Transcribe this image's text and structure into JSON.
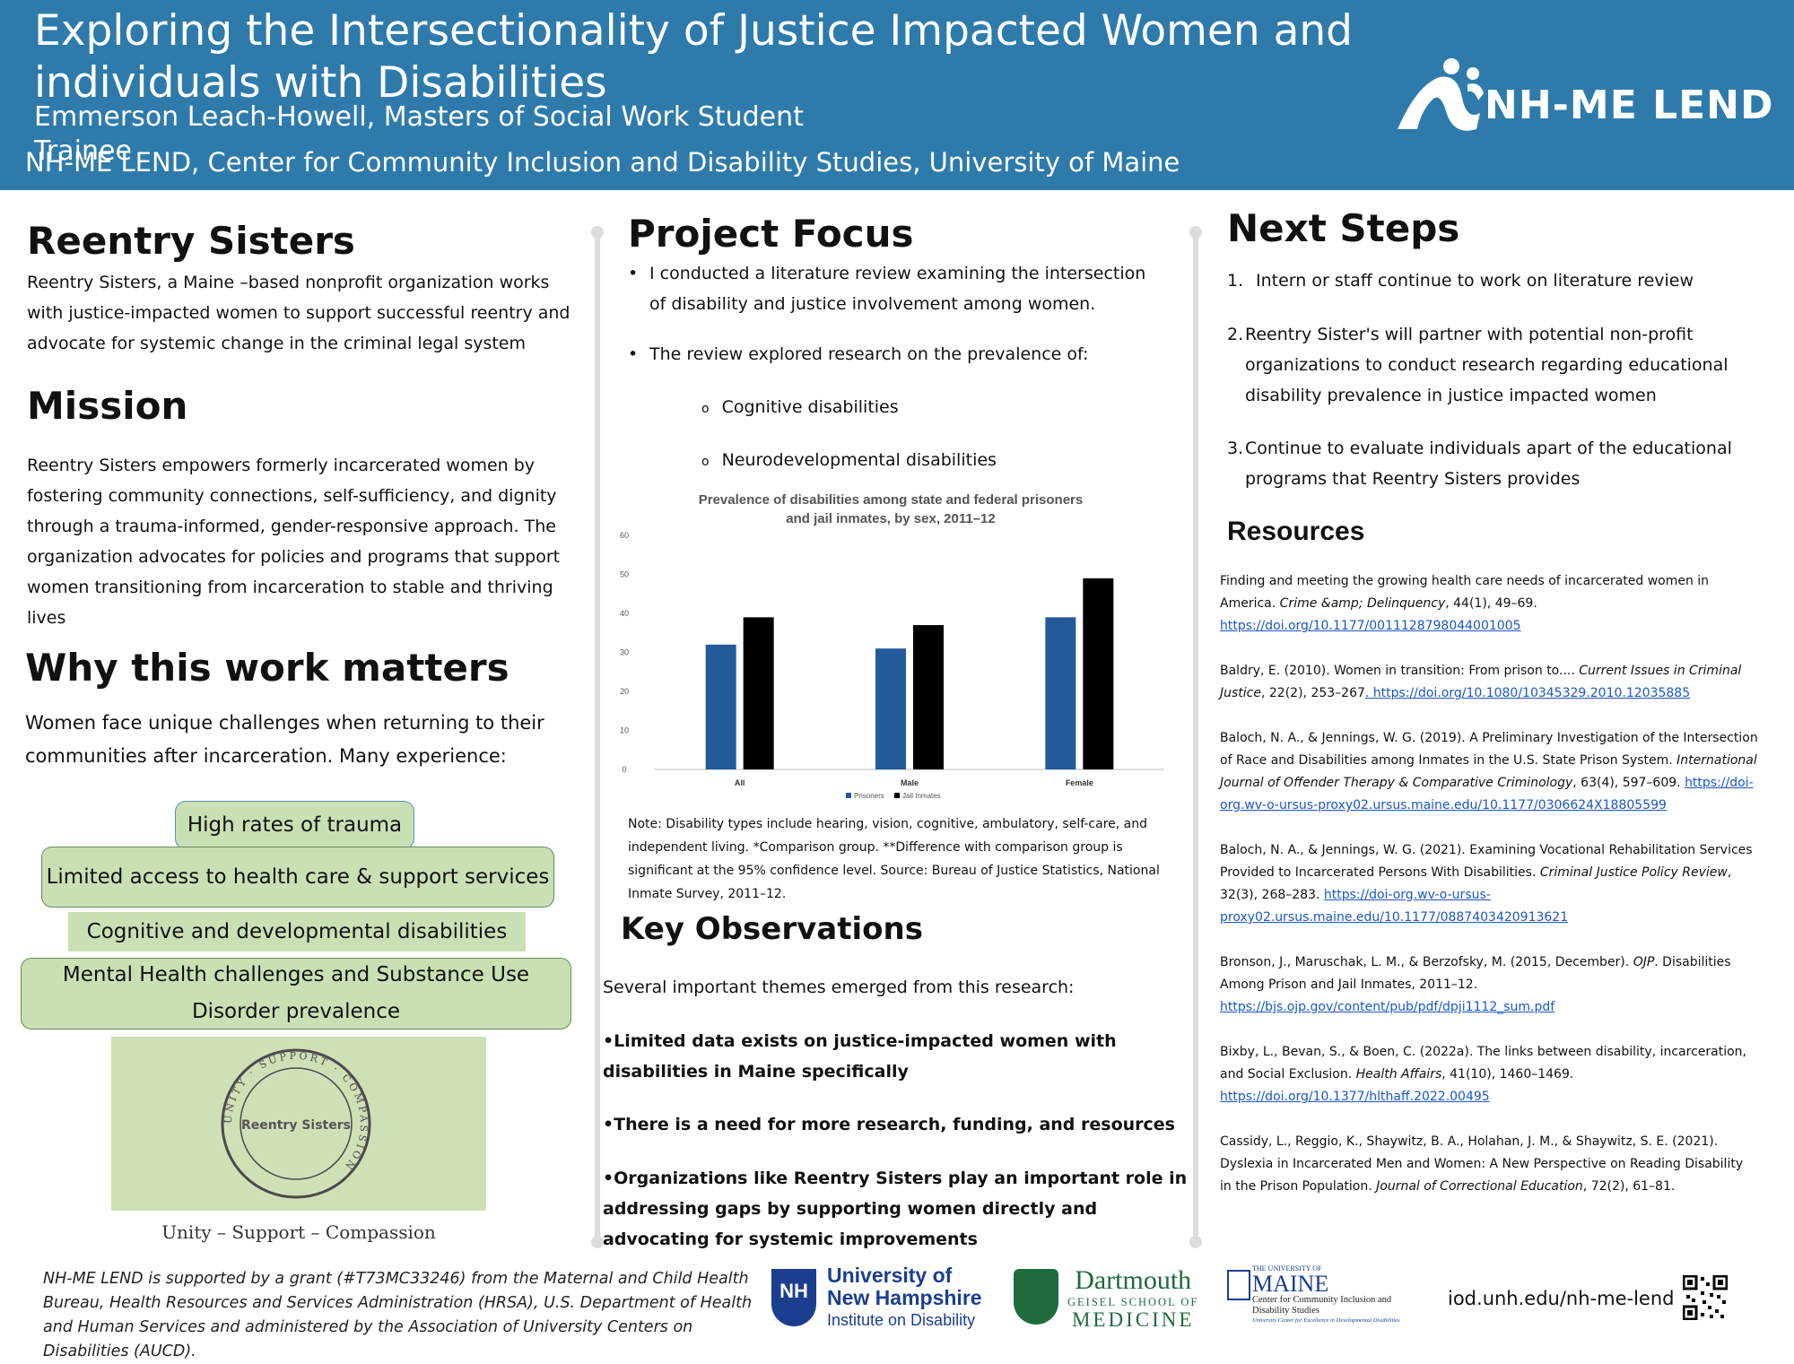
{
  "header": {
    "title": "Exploring the Intersectionality of Justice Impacted Women and individuals with Disabilities",
    "author": "Emmerson Leach-Howell, Masters of Social Work Student Trainee",
    "affiliation": "NH-ME LEND, Center for Community Inclusion and Disability Studies, University of Maine",
    "logo_text": "NH-ME LEND"
  },
  "col1": {
    "reentry_heading": "Reentry Sisters",
    "reentry_text": "Reentry Sisters, a Maine –based nonprofit organization works with justice-impacted women to support successful reentry and advocate for systemic change in the criminal legal system",
    "mission_heading": "Mission",
    "mission_text": "Reentry Sisters empowers formerly incarcerated women by fostering community connections, self-sufficiency, and dignity through a trauma-informed, gender-responsive approach. The organization advocates for policies and programs that support women transitioning from incarceration to stable and thriving lives",
    "why_heading": "Why this work matters",
    "why_text": "Women face unique challenges when returning to their communities after incarceration. Many experience:",
    "challenges": [
      "High rates of trauma",
      "Limited access to health care & support services",
      "Cognitive and developmental disabilities",
      "Mental Health challenges and Substance Use Disorder prevalence"
    ],
    "seal_ring_text": "UNITY · SUPPORT · COMPASSION",
    "seal_center": "Reentry Sisters",
    "seal_caption": "Unity – Support – Compassion"
  },
  "col2": {
    "focus_heading": "Project Focus",
    "focus_bullet1": "I conducted a literature review examining the intersection of disability and justice involvement among women.",
    "focus_bullet2": "The review explored research on the prevalence of:",
    "sub1": "Cognitive disabilities",
    "sub2": "Neurodevelopmental disabilities",
    "note": "Note: Disability types include hearing, vision, cognitive, ambulatory, self-care, and independent living. *Comparison group. **Difference with comparison group is significant at the 95% confidence level. Source: Bureau of Justice Statistics, National Inmate Survey, 2011–12.",
    "obs_heading": "Key Observations",
    "obs_intro": "Several important themes emerged from this research:",
    "obs1": "•Limited data exists on justice-impacted women with disabilities in Maine specifically",
    "obs2": "•There is a need for more research, funding, and resources",
    "obs3": "•Organizations like Reentry Sisters play an important role in addressing gaps by supporting women directly and advocating for systemic improvements"
  },
  "chart_data": {
    "type": "bar",
    "title": "Prevalence of disabilities among state and federal prisoners and jail inmates, by sex, 2011–12",
    "categories": [
      "All",
      "Male",
      "Female"
    ],
    "series": [
      {
        "name": "Prisoners",
        "values": [
          32,
          31,
          39
        ],
        "color": "#235a9a"
      },
      {
        "name": "Jail Inmates",
        "values": [
          39,
          37,
          49
        ],
        "color": "#000000"
      }
    ],
    "ylim": [
      0,
      60
    ],
    "yticks": [
      "0",
      "10",
      "20",
      "30",
      "40",
      "50",
      "60"
    ],
    "grid": false,
    "legend": "bottom"
  },
  "col3": {
    "next_heading": "Next Steps",
    "steps": [
      {
        "num": "1.",
        "text": "Intern or staff continue to work on literature review"
      },
      {
        "num": "2.",
        "text": "Reentry Sister's will partner with potential non-profit organizations to conduct research regarding educational disability prevalence in justice impacted women"
      },
      {
        "num": "3.",
        "text": "Continue to evaluate individuals apart of the educational programs that Reentry Sisters provides"
      }
    ],
    "resources_heading": "Resources",
    "refs": [
      {
        "text": "Finding and meeting the growing  health care needs of incarcerated women in America. ",
        "italic": "Crime &amp; Delinquency",
        "rest": ", 44(1), 49–69. ",
        "link": "https://doi.org/10.1177/0011128798044001005 "
      },
      {
        "text": " Baldry, E. (2010). Women in transition: From prison to.... ",
        "italic": "Current Issues in Criminal Justice",
        "rest": ", 22(2), 253–267",
        "link": ". https://doi.org/10.1080/10345329.2010.12035885 "
      },
      {
        "text": "Baloch, N. A., & Jennings, W. G. (2019). A Preliminary Investigation of the Intersection of Race and Disabilities among Inmates in the U.S. State Prison System. ",
        "italic": "International Journal of Offender Therapy & Comparative Criminology",
        "rest": ", 63(4), 597–609. ",
        "link": "https://doi-org.wv-o-ursus-proxy02.ursus.maine.edu/10.1177/0306624X18805599"
      },
      {
        "text": " Baloch, N. A., & Jennings, W. G. (2021). Examining Vocational Rehabilitation Services Provided to Incarcerated Persons With Disabilities. ",
        "italic": "Criminal Justice Policy Review",
        "rest": ", 32(3), 268–283. ",
        "link": "https://doi-org.wv-o-ursus-proxy02.ursus.maine.edu/10.1177/0887403420913621"
      },
      {
        "text": " Bronson, J., Maruschak, L. M., & Berzofsky, M. (2015, December). ",
        "italic": "OJP",
        "rest": ". Disabilities Among Prison and Jail Inmates, 2011–12. ",
        "link": "https://bjs.ojp.gov/content/pub/pdf/dpji1112_sum.pdf "
      },
      {
        "text": " Bixby, L., Bevan, S., & Boen, C. (2022a). The links between disability, incarceration, and Social Exclusion. ",
        "italic": "Health Affairs",
        "rest": ", 41(10), 1460–1469. ",
        "link": "https://doi.org/10.1377/hlthaff.2022.00495 "
      },
      {
        "text": "Cassidy, L., Reggio, K., Shaywitz, B. A., Holahan, J. M., & Shaywitz, S. E. (2021). Dyslexia in Incarcerated Men and Women: A New Perspective on Reading Disability in the Prison Population. ",
        "italic": "Journal of Correctional Education",
        "rest": ", 72(2), 61–81.",
        "link": ""
      }
    ]
  },
  "footer": {
    "funding": "NH-ME LEND is supported by a grant (#T73MC33246) from the Maternal and Child Health Bureau, Health Resources and Services Administration (HRSA), U.S. Department of Health and Human Services and administered by the Association of University Centers on Disabilities (AUCD).",
    "unh_line1": "University of",
    "unh_line2": "New Hampshire",
    "unh_line3": "Institute on Disability",
    "unh_mark": "NH",
    "dart_line1": "Dartmouth",
    "dart_line2": "GEISEL SCHOOL OF",
    "dart_line3": "MEDICINE",
    "maine_line0": "THE UNIVERSITY OF",
    "maine_line1": "MAINE",
    "maine_line2": "Center for Community Inclusion and Disability Studies",
    "maine_line3": "University Center for Excellence in Developmental Disabilities",
    "url": "iod.unh.edu/nh-me-lend"
  }
}
